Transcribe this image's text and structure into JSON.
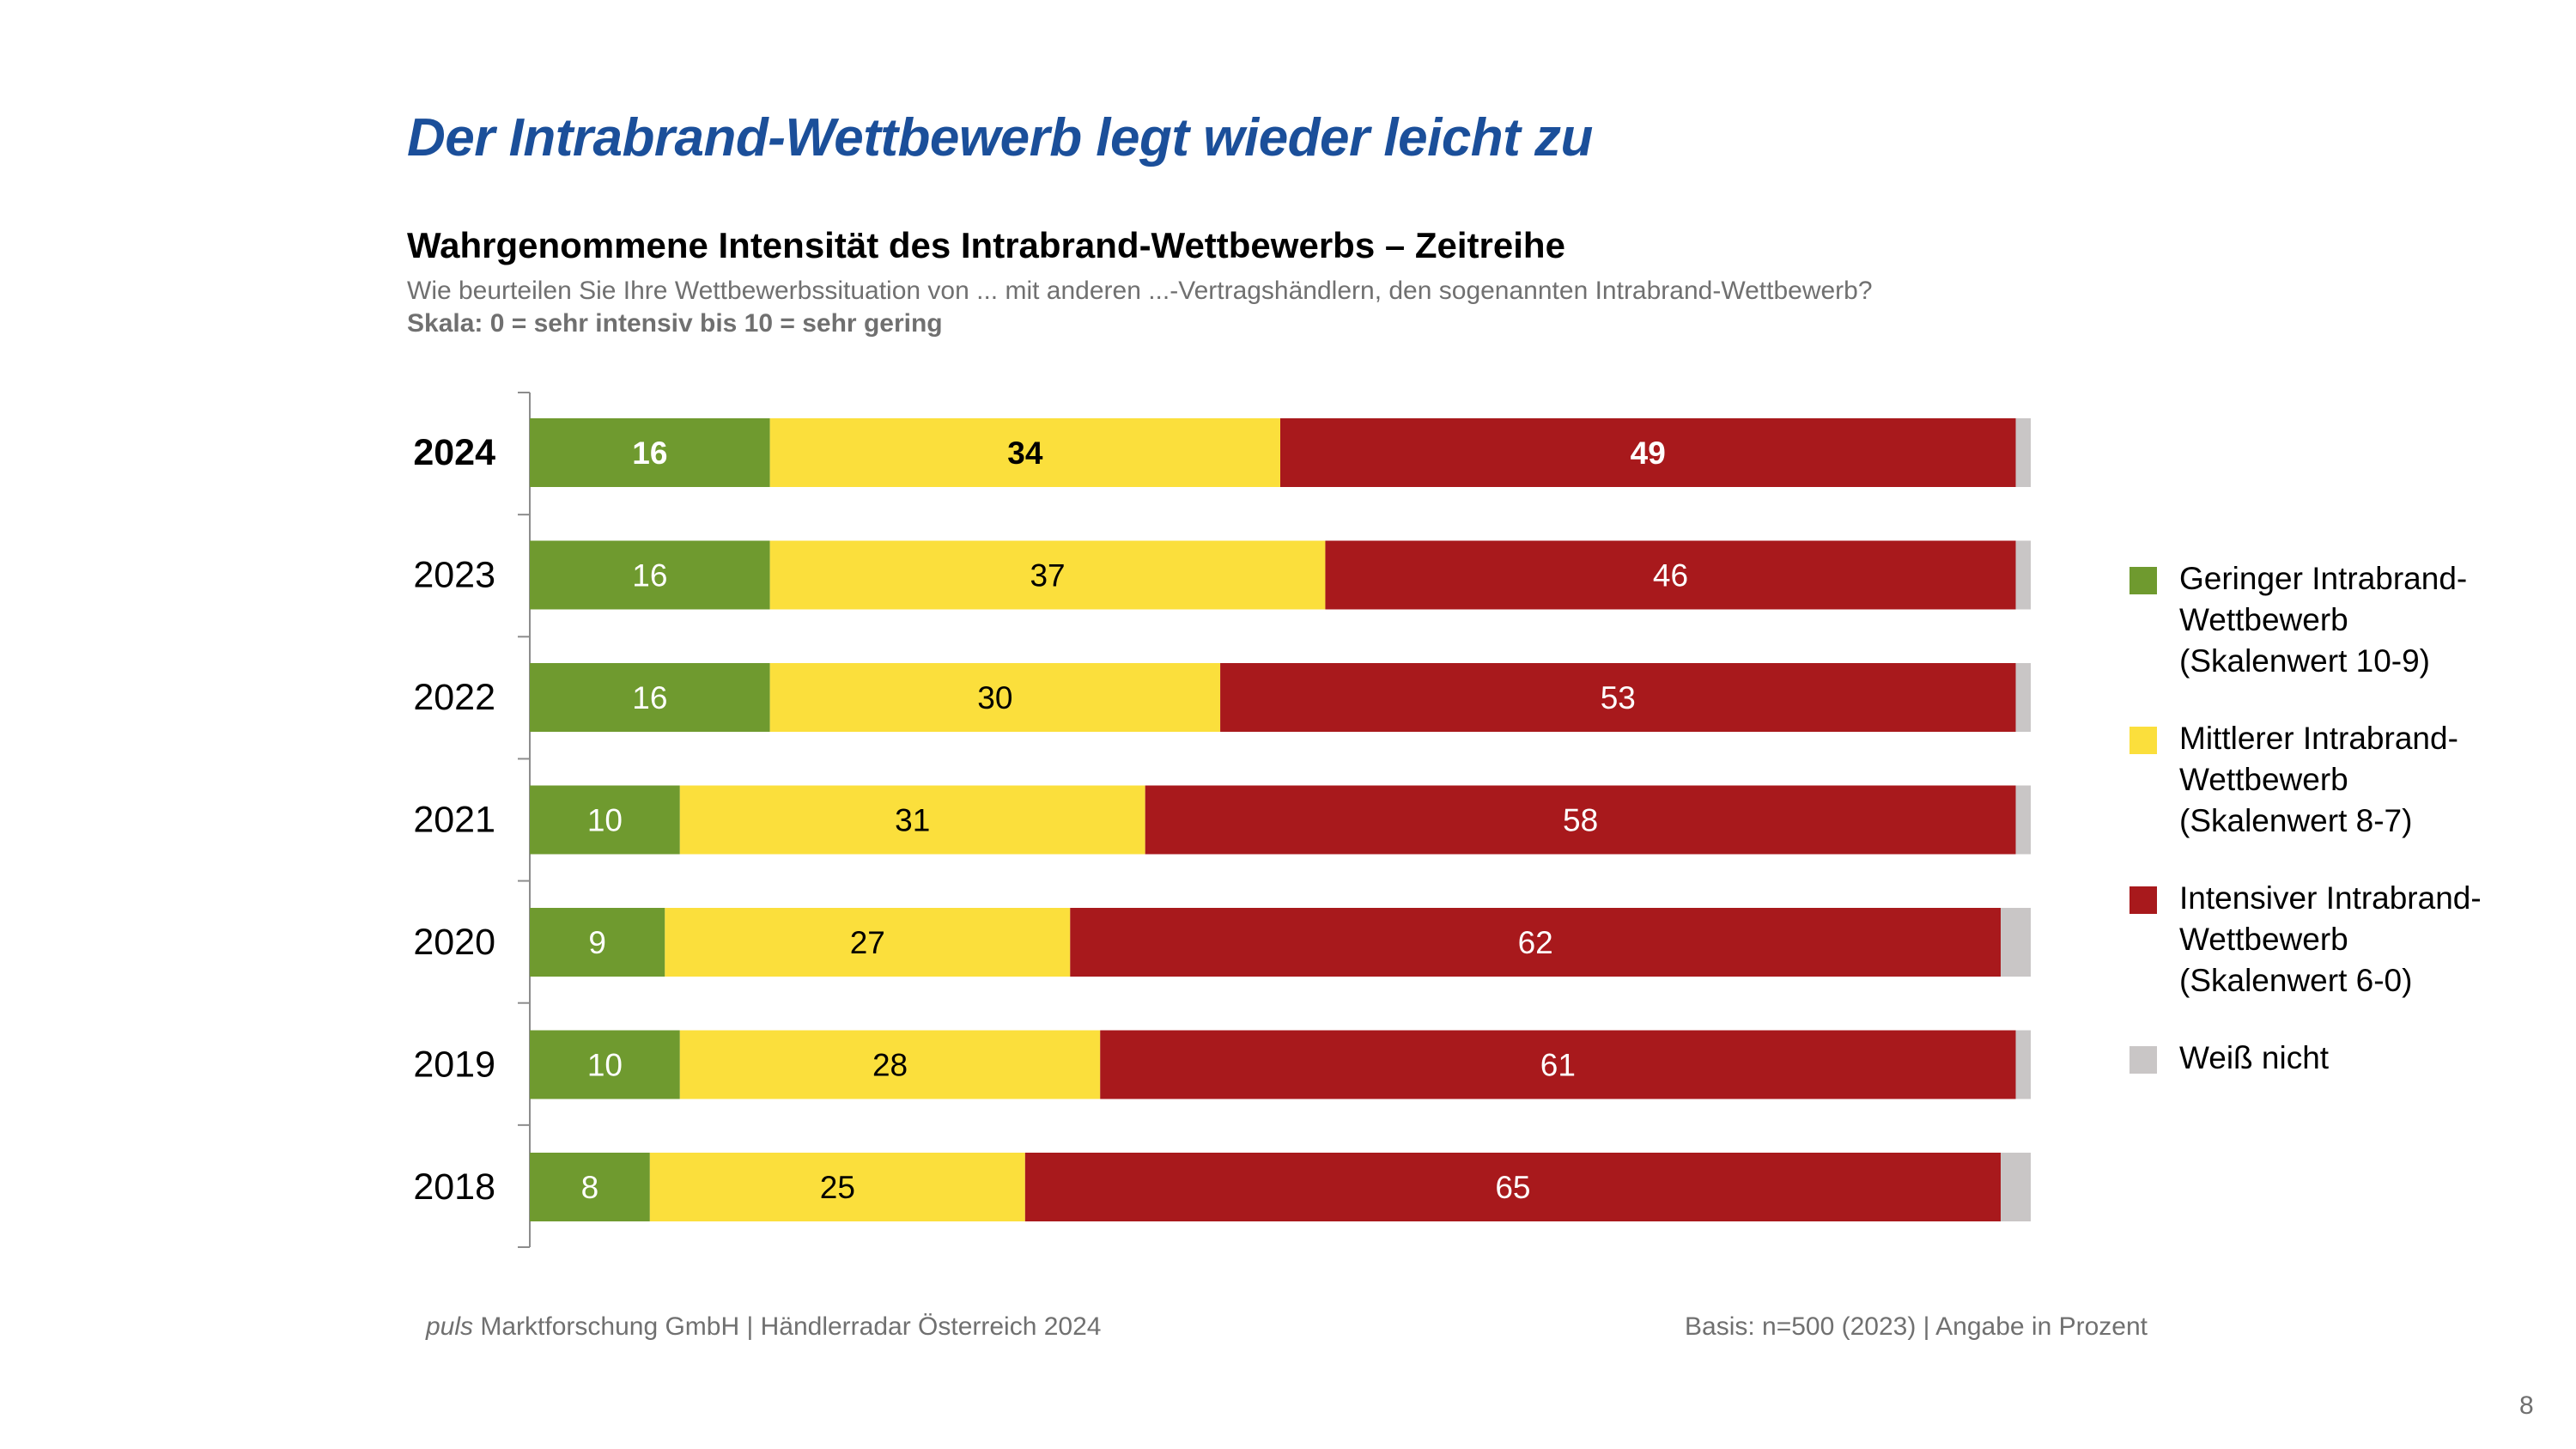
{
  "slide": {
    "title": "Der Intrabrand-Wettbewerb legt wieder leicht zu",
    "subtitle": "Wahrgenommene Intensität des Intrabrand-Wettbewerbs – Zeitreihe",
    "question": "Wie beurteilen Sie Ihre Wettbewerbssituation von ... mit anderen ...-Vertragshändlern, den sogenannten Intrabrand-Wettbewerb?",
    "scale_note": "Skala: 0 = sehr intensiv bis 10 = sehr gering"
  },
  "chart_data": {
    "type": "bar",
    "orientation": "horizontal",
    "stacked": true,
    "categories": [
      "2024",
      "2023",
      "2022",
      "2021",
      "2020",
      "2019",
      "2018"
    ],
    "highlight_category": "2024",
    "series": [
      {
        "name": "Geringer Intrabrand-Wettbewerb (Skalenwert 10-9)",
        "color": "#6f9a2f",
        "label_color": "#ffffff",
        "values": [
          16,
          16,
          16,
          10,
          9,
          10,
          8
        ]
      },
      {
        "name": "Mittlerer Intrabrand-Wettbewerb (Skalenwert 8-7)",
        "color": "#fbdf3c",
        "label_color": "#000000",
        "values": [
          34,
          37,
          30,
          31,
          27,
          28,
          25
        ]
      },
      {
        "name": "Intensiver Intrabrand-Wettbewerb (Skalenwert 6-0)",
        "color": "#a8191c",
        "label_color": "#ffffff",
        "values": [
          49,
          46,
          53,
          58,
          62,
          61,
          65
        ]
      },
      {
        "name": "Weiß nicht",
        "color": "#c9c6c6",
        "label_color": "#000000",
        "show_labels": false,
        "values": [
          1,
          1,
          1,
          1,
          2,
          1,
          2
        ]
      }
    ],
    "xlim": [
      0,
      100
    ],
    "legend_position": "right",
    "grid": false
  },
  "legend": {
    "items": [
      {
        "label_lines": [
          "Geringer Intrabrand-",
          "Wettbewerb",
          "(Skalenwert 10-9)"
        ],
        "color": "#6f9a2f"
      },
      {
        "label_lines": [
          "Mittlerer Intrabrand-",
          "Wettbewerb",
          "(Skalenwert 8-7)"
        ],
        "color": "#fbdf3c"
      },
      {
        "label_lines": [
          "Intensiver Intrabrand-",
          "Wettbewerb",
          "(Skalenwert 6-0)"
        ],
        "color": "#a8191c"
      },
      {
        "label_lines": [
          "Weiß nicht"
        ],
        "color": "#c9c6c6"
      }
    ]
  },
  "footer": {
    "brand": "puls",
    "source": " Marktforschung GmbH | Händlerradar Österreich 2024",
    "basis": "Basis: n=500 (2023) | Angabe in Prozent",
    "page_number": "8"
  }
}
